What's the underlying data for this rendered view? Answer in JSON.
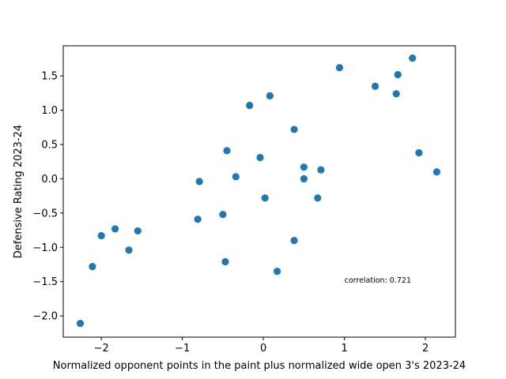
{
  "chart_data": {
    "type": "scatter",
    "xlabel": "Normalized opponent points in the paint plus normalized wide open 3's 2023-24",
    "ylabel": "Defensive Rating 2023-24",
    "xlim": [
      -2.47,
      2.37
    ],
    "ylim": [
      -2.31,
      1.94
    ],
    "xticks": [
      -2,
      -1,
      0,
      1,
      2
    ],
    "xtick_labels": [
      "−2",
      "−1",
      "0",
      "1",
      "2"
    ],
    "yticks": [
      -2.0,
      -1.5,
      -1.0,
      -0.5,
      0.0,
      0.5,
      1.0,
      1.5
    ],
    "ytick_labels": [
      "−2.0",
      "−1.5",
      "−1.0",
      "−0.5",
      "0.0",
      "0.5",
      "1.0",
      "1.5"
    ],
    "grid": false,
    "marker_color": "#1f77b4",
    "annotation": {
      "text": "correlation: 0.721",
      "x": 1.0,
      "y": -1.48
    },
    "points": [
      {
        "x": -2.26,
        "y": -2.11
      },
      {
        "x": -2.11,
        "y": -1.28
      },
      {
        "x": -2.0,
        "y": -0.83
      },
      {
        "x": -1.83,
        "y": -0.73
      },
      {
        "x": -1.66,
        "y": -1.04
      },
      {
        "x": -1.55,
        "y": -0.76
      },
      {
        "x": -0.81,
        "y": -0.59
      },
      {
        "x": -0.79,
        "y": -0.04
      },
      {
        "x": -0.5,
        "y": -0.52
      },
      {
        "x": -0.47,
        "y": -1.21
      },
      {
        "x": -0.45,
        "y": 0.41
      },
      {
        "x": -0.34,
        "y": 0.03
      },
      {
        "x": -0.17,
        "y": 1.07
      },
      {
        "x": -0.04,
        "y": 0.31
      },
      {
        "x": 0.02,
        "y": -0.28
      },
      {
        "x": 0.08,
        "y": 1.21
      },
      {
        "x": 0.17,
        "y": -1.35
      },
      {
        "x": 0.38,
        "y": 0.72
      },
      {
        "x": 0.38,
        "y": -0.9
      },
      {
        "x": 0.5,
        "y": 0.17
      },
      {
        "x": 0.5,
        "y": 0.0
      },
      {
        "x": 0.67,
        "y": -0.28
      },
      {
        "x": 0.71,
        "y": 0.13
      },
      {
        "x": 0.94,
        "y": 1.62
      },
      {
        "x": 1.38,
        "y": 1.35
      },
      {
        "x": 1.64,
        "y": 1.24
      },
      {
        "x": 1.66,
        "y": 1.52
      },
      {
        "x": 1.84,
        "y": 1.76
      },
      {
        "x": 1.92,
        "y": 0.38
      },
      {
        "x": 2.14,
        "y": 0.1
      }
    ]
  }
}
